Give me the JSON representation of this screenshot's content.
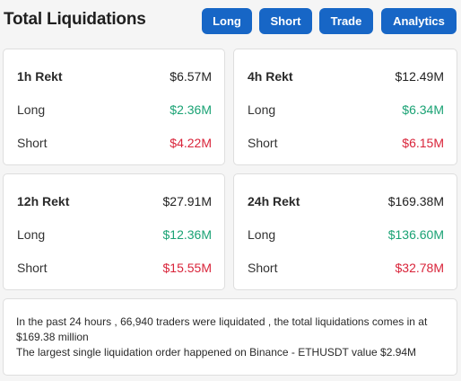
{
  "header": {
    "title": "Total Liquidations",
    "buttons": {
      "long": "Long",
      "short": "Short",
      "trade": "Trade",
      "analytics": "Analytics"
    }
  },
  "cards": {
    "h1": {
      "label": "1h Rekt",
      "total": "$6.57M",
      "long_label": "Long",
      "long": "$2.36M",
      "short_label": "Short",
      "short": "$4.22M"
    },
    "h4": {
      "label": "4h Rekt",
      "total": "$12.49M",
      "long_label": "Long",
      "long": "$6.34M",
      "short_label": "Short",
      "short": "$6.15M"
    },
    "h12": {
      "label": "12h Rekt",
      "total": "$27.91M",
      "long_label": "Long",
      "long": "$12.36M",
      "short_label": "Short",
      "short": "$15.55M"
    },
    "h24": {
      "label": "24h Rekt",
      "total": "$169.38M",
      "long_label": "Long",
      "long": "$136.60M",
      "short_label": "Short",
      "short": "$32.78M"
    }
  },
  "summary": {
    "line1": "In the past 24 hours , 66,940 traders were liquidated , the total liquidations comes in at $169.38 million",
    "line2": "The largest single liquidation order happened on Binance - ETHUSDT value $2.94M"
  },
  "colors": {
    "button": "#1766c6",
    "long": "#1aa274",
    "short": "#d9243a"
  }
}
